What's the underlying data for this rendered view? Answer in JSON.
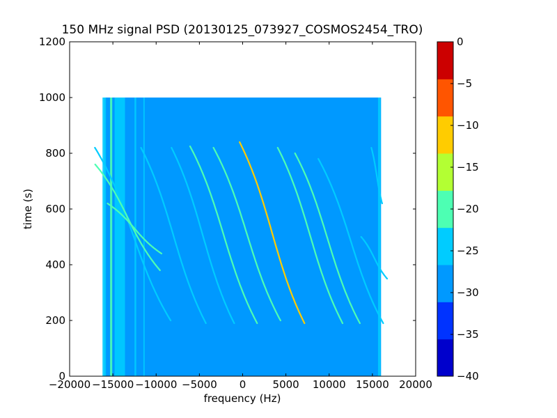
{
  "chart_data": {
    "type": "heatmap",
    "title": "150 MHz signal PSD (20130125_073927_COSMOS2454_TRO)",
    "xlabel": "frequency (Hz)",
    "ylabel": "time (s)",
    "xlim": [
      -20000,
      20000
    ],
    "ylim": [
      0,
      1200
    ],
    "x_ticks": [
      -20000,
      -15000,
      -10000,
      -5000,
      0,
      5000,
      10000,
      15000,
      20000
    ],
    "x_tick_labels": [
      "−20000",
      "−15000",
      "−10000",
      "−5000",
      "0",
      "5000",
      "10000",
      "15000",
      "20000"
    ],
    "y_ticks": [
      0,
      200,
      400,
      600,
      800,
      1000,
      1200
    ],
    "y_tick_labels": [
      "0",
      "200",
      "400",
      "600",
      "800",
      "1000",
      "1200"
    ],
    "data_extent": {
      "x": [
        -16000,
        16000
      ],
      "y": [
        0,
        1000
      ]
    },
    "background_level": -27.5,
    "colorbar": {
      "levels": [
        -40,
        -35,
        -30,
        -25,
        -20,
        -15,
        -10,
        -5,
        0
      ],
      "tick_labels": [
        "−40",
        "−35",
        "−30",
        "−25",
        "−20",
        "−15",
        "−10",
        "−5",
        "0"
      ],
      "colors": [
        "#0000cc",
        "#0033ff",
        "#0099ff",
        "#00ccff",
        "#4dffb3",
        "#b3ff33",
        "#ffcc00",
        "#ff5500",
        "#cc0000"
      ]
    },
    "vertical_features": [
      {
        "x": -16000,
        "width": 400,
        "level": -22
      },
      {
        "x": -15200,
        "width": 250,
        "level": -17
      },
      {
        "x": -14200,
        "width": 1200,
        "level": -25
      },
      {
        "x": -12400,
        "width": 200,
        "level": -22
      },
      {
        "x": -11400,
        "width": 150,
        "level": -24
      },
      {
        "x": 15800,
        "width": 300,
        "level": -22
      }
    ],
    "tracks": [
      {
        "center": -12700,
        "slope": 3500,
        "y_range": [
          200,
          820
        ],
        "level": -22
      },
      {
        "center": -8000,
        "slope": 3000,
        "y_range": [
          190,
          820
        ],
        "level": -22
      },
      {
        "center": -4600,
        "slope": 2900,
        "y_range": [
          190,
          820
        ],
        "level": -22
      },
      {
        "center": -2200,
        "slope": 3100,
        "y_range": [
          190,
          825
        ],
        "level": -18
      },
      {
        "center": 500,
        "slope": 3100,
        "y_range": [
          200,
          820
        ],
        "level": -18
      },
      {
        "center": 3400,
        "slope": 3000,
        "y_range": [
          190,
          840
        ],
        "level": -8
      },
      {
        "center": 7800,
        "slope": 3000,
        "y_range": [
          190,
          820
        ],
        "level": -18
      },
      {
        "center": 9800,
        "slope": 3000,
        "y_range": [
          190,
          800
        ],
        "level": -18
      },
      {
        "center": 12500,
        "slope": 3000,
        "y_range": [
          190,
          780
        ],
        "level": -22
      },
      {
        "center": 15200,
        "slope": 1200,
        "y_range": [
          350,
          500
        ],
        "level": -22
      },
      {
        "center": 15500,
        "slope": 500,
        "y_range": [
          620,
          820
        ],
        "level": -22
      },
      {
        "center": -13300,
        "slope": 3000,
        "y_range": [
          380,
          760
        ],
        "level": -18
      },
      {
        "center": -12500,
        "slope": 2500,
        "y_range": [
          440,
          620
        ],
        "level": -20
      }
    ]
  }
}
